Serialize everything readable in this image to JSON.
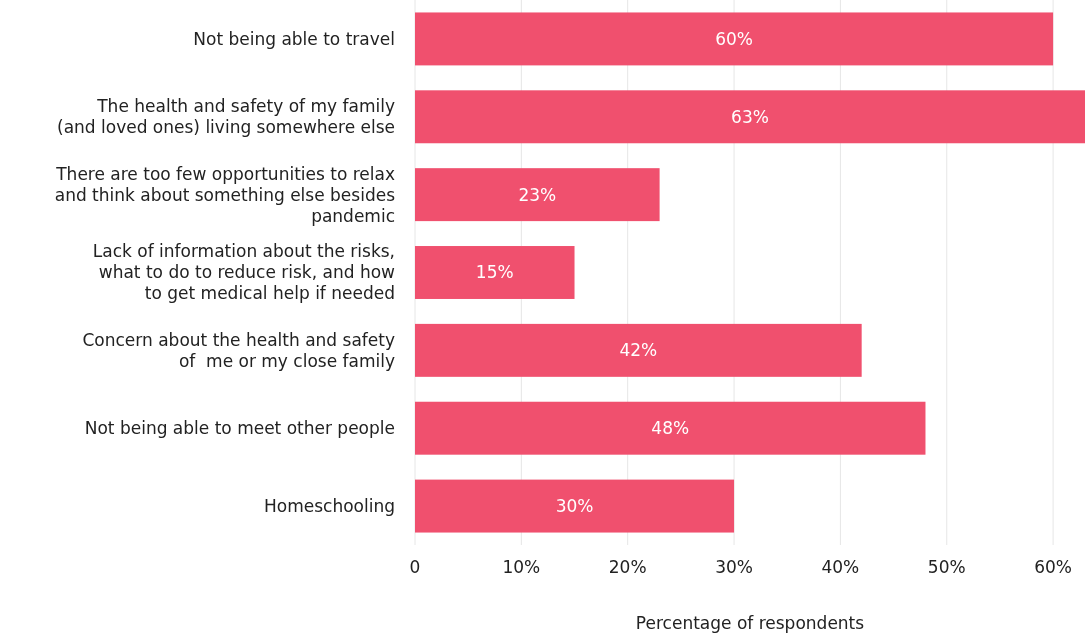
{
  "chart_data": {
    "type": "bar",
    "orientation": "horizontal",
    "xlabel": "Percentage of respondents",
    "categories": [
      "Not being able to travel",
      "The health and safety of my family\n(and loved ones) living somewhere else",
      "There are too few opportunities to relax\nand think about something else besides\npandemic",
      "Lack of information about the risks,\nwhat to do to reduce risk, and how\nto get medical help if needed",
      "Concern about the health and safety\nof  me or my close family",
      "Not being able to meet other people",
      "Homeschooling"
    ],
    "values": [
      60,
      63,
      23,
      15,
      42,
      48,
      30
    ],
    "value_labels": [
      "60%",
      "63%",
      "23%",
      "15%",
      "42%",
      "48%",
      "30%"
    ],
    "color": "#f0506e",
    "xlim": [
      0,
      63
    ],
    "xticks": [
      0,
      {
        "value": 10,
        "label": "10%"
      },
      {
        "value": 20,
        "label": "20%"
      },
      {
        "value": 30,
        "label": "30%"
      },
      {
        "value": 40,
        "label": "40%"
      },
      {
        "value": 50,
        "label": "50%"
      },
      {
        "value": 60,
        "label": "60%"
      }
    ],
    "grid": "x"
  }
}
